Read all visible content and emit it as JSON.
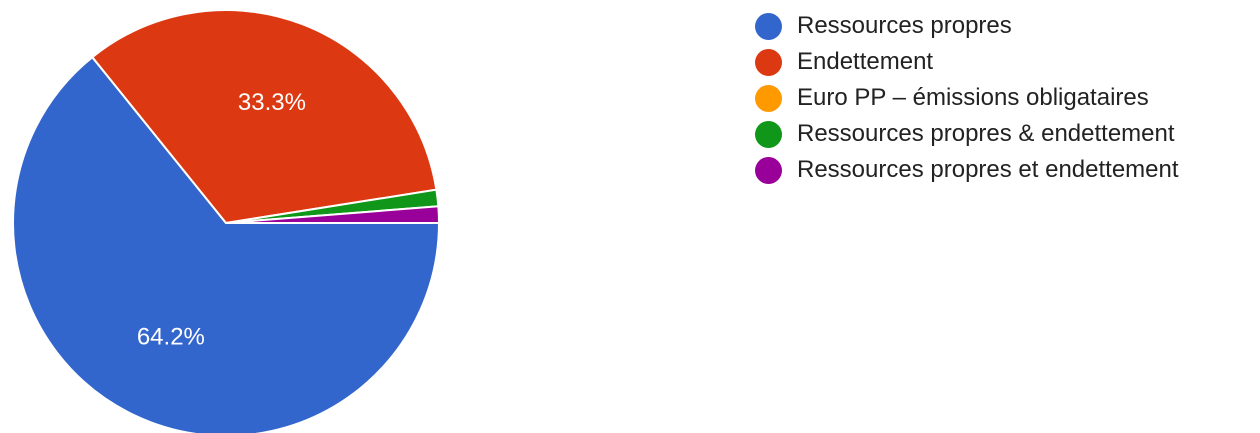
{
  "chart_data": {
    "type": "pie",
    "slices": [
      {
        "label": "Ressources propres",
        "value": 64.2,
        "color": "#3366cc",
        "display": "64.2%"
      },
      {
        "label": "Endettement",
        "value": 33.3,
        "color": "#dc3912",
        "display": "33.3%"
      },
      {
        "label": "Euro PP – émissions obligataires",
        "value": 0,
        "color": "#ff9900",
        "display": ""
      },
      {
        "label": "Ressources propres & endettement",
        "value": 1.25,
        "color": "#109618",
        "display": ""
      },
      {
        "label": "Ressources propres et endettement",
        "value": 1.25,
        "color": "#990099",
        "display": ""
      }
    ],
    "legend_position": "right"
  }
}
